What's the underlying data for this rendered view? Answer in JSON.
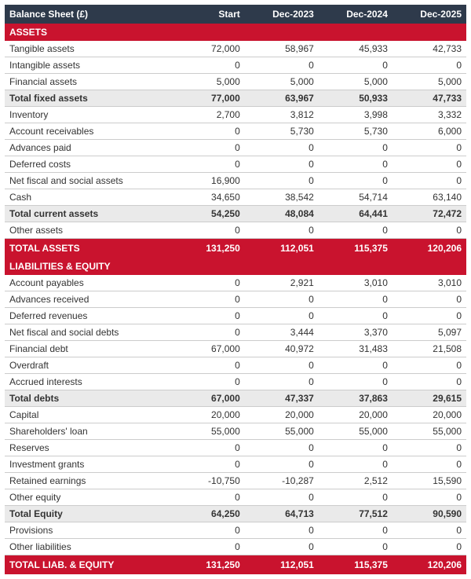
{
  "title": "Balance Sheet (£)",
  "columns": [
    "Start",
    "Dec-2023",
    "Dec-2024",
    "Dec-2025"
  ],
  "sections": [
    {
      "header": "ASSETS",
      "rows": [
        {
          "label": "Tangible assets",
          "values": [
            "72,000",
            "58,967",
            "45,933",
            "42,733"
          ]
        },
        {
          "label": "Intangible assets",
          "values": [
            "0",
            "0",
            "0",
            "0"
          ]
        },
        {
          "label": "Financial assets",
          "values": [
            "5,000",
            "5,000",
            "5,000",
            "5,000"
          ]
        },
        {
          "label": "Total fixed assets",
          "values": [
            "77,000",
            "63,967",
            "50,933",
            "47,733"
          ],
          "subtotal": true
        },
        {
          "label": "Inventory",
          "values": [
            "2,700",
            "3,812",
            "3,998",
            "3,332"
          ]
        },
        {
          "label": "Account receivables",
          "values": [
            "0",
            "5,730",
            "5,730",
            "6,000"
          ]
        },
        {
          "label": "Advances paid",
          "values": [
            "0",
            "0",
            "0",
            "0"
          ]
        },
        {
          "label": "Deferred costs",
          "values": [
            "0",
            "0",
            "0",
            "0"
          ]
        },
        {
          "label": "Net fiscal and social assets",
          "values": [
            "16,900",
            "0",
            "0",
            "0"
          ]
        },
        {
          "label": "Cash",
          "values": [
            "34,650",
            "38,542",
            "54,714",
            "63,140"
          ]
        },
        {
          "label": "Total current assets",
          "values": [
            "54,250",
            "48,084",
            "64,441",
            "72,472"
          ],
          "subtotal": true
        },
        {
          "label": "Other assets",
          "values": [
            "0",
            "0",
            "0",
            "0"
          ]
        }
      ],
      "total": {
        "label": "TOTAL ASSETS",
        "values": [
          "131,250",
          "112,051",
          "115,375",
          "120,206"
        ]
      }
    },
    {
      "header": "LIABILITIES & EQUITY",
      "rows": [
        {
          "label": "Account payables",
          "values": [
            "0",
            "2,921",
            "3,010",
            "3,010"
          ]
        },
        {
          "label": "Advances received",
          "values": [
            "0",
            "0",
            "0",
            "0"
          ]
        },
        {
          "label": "Deferred revenues",
          "values": [
            "0",
            "0",
            "0",
            "0"
          ]
        },
        {
          "label": "Net fiscal and social debts",
          "values": [
            "0",
            "3,444",
            "3,370",
            "5,097"
          ]
        },
        {
          "label": "Financial debt",
          "values": [
            "67,000",
            "40,972",
            "31,483",
            "21,508"
          ]
        },
        {
          "label": "Overdraft",
          "values": [
            "0",
            "0",
            "0",
            "0"
          ]
        },
        {
          "label": "Accrued interests",
          "values": [
            "0",
            "0",
            "0",
            "0"
          ]
        },
        {
          "label": "Total debts",
          "values": [
            "67,000",
            "47,337",
            "37,863",
            "29,615"
          ],
          "subtotal": true
        },
        {
          "label": "Capital",
          "values": [
            "20,000",
            "20,000",
            "20,000",
            "20,000"
          ]
        },
        {
          "label": "Shareholders' loan",
          "values": [
            "55,000",
            "55,000",
            "55,000",
            "55,000"
          ]
        },
        {
          "label": "Reserves",
          "values": [
            "0",
            "0",
            "0",
            "0"
          ]
        },
        {
          "label": "Investment grants",
          "values": [
            "0",
            "0",
            "0",
            "0"
          ]
        },
        {
          "label": "Retained earnings",
          "values": [
            "-10,750",
            "-10,287",
            "2,512",
            "15,590"
          ]
        },
        {
          "label": "Other equity",
          "values": [
            "0",
            "0",
            "0",
            "0"
          ]
        },
        {
          "label": "Total Equity",
          "values": [
            "64,250",
            "64,713",
            "77,512",
            "90,590"
          ],
          "subtotal": true
        },
        {
          "label": "Provisions",
          "values": [
            "0",
            "0",
            "0",
            "0"
          ]
        },
        {
          "label": "Other liabilities",
          "values": [
            "0",
            "0",
            "0",
            "0"
          ]
        }
      ],
      "total": {
        "label": "TOTAL LIAB. & EQUITY",
        "values": [
          "131,250",
          "112,051",
          "115,375",
          "120,206"
        ]
      }
    }
  ]
}
